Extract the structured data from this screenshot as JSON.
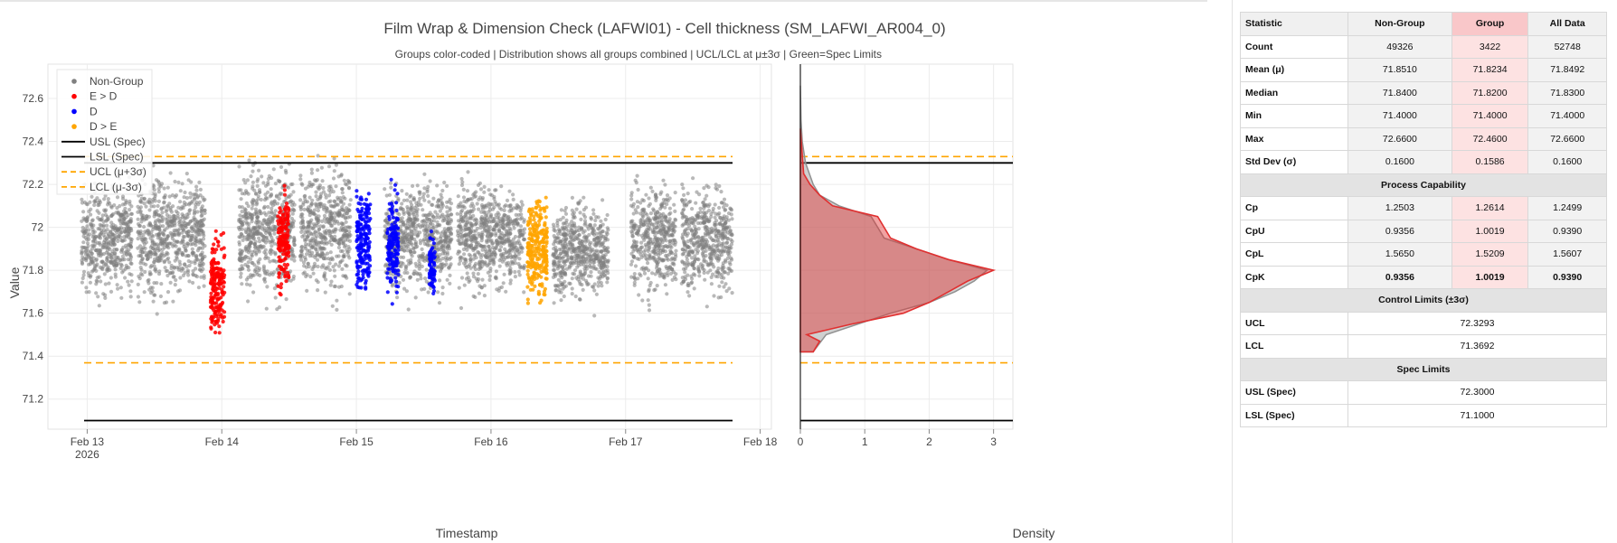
{
  "chart_data": {
    "type": "scatter",
    "title": "Film Wrap & Dimension Check (LAFWI01) - Cell thickness (SM_LAFWI_AR004_0)",
    "subtitle": "Groups color-coded | Distribution shows all groups combined | UCL/LCL at μ±3σ | Green=Spec Limits",
    "xlabel": "Timestamp",
    "ylabel": "Value",
    "x_ticks": [
      "Feb 13",
      "Feb 14",
      "Feb 15",
      "Feb 16",
      "Feb 17",
      "Feb 18"
    ],
    "x_tick_year": "2026",
    "x_range": [
      "2026-02-12 17:00",
      "2026-02-18 02:00"
    ],
    "y_ticks": [
      "71.2",
      "71.4",
      "71.6",
      "71.8",
      "72",
      "72.2",
      "72.4",
      "72.6"
    ],
    "y_range": [
      71.06,
      72.76
    ],
    "grid": true,
    "legend_position": "top-left",
    "series": [
      {
        "name": "Non-Group",
        "color": "#808080",
        "mode": "markers",
        "clusters": [
          {
            "x_start": "2026-02-12 23:00",
            "x_end": "2026-02-13 08:00",
            "y_min": 71.58,
            "y_max": 72.3
          },
          {
            "x_start": "2026-02-13 09:00",
            "x_end": "2026-02-13 21:00",
            "y_min": 71.57,
            "y_max": 72.35
          },
          {
            "x_start": "2026-02-14 03:00",
            "x_end": "2026-02-14 13:00",
            "y_min": 71.58,
            "y_max": 72.38
          },
          {
            "x_start": "2026-02-14 14:00",
            "x_end": "2026-02-14 23:00",
            "y_min": 71.58,
            "y_max": 72.4
          },
          {
            "x_start": "2026-02-15 05:00",
            "x_end": "2026-02-15 17:00",
            "y_min": 71.6,
            "y_max": 72.3
          },
          {
            "x_start": "2026-02-15 18:00",
            "x_end": "2026-02-16 06:00",
            "y_min": 71.6,
            "y_max": 72.3
          },
          {
            "x_start": "2026-02-16 11:00",
            "x_end": "2026-02-16 21:00",
            "y_min": 71.58,
            "y_max": 72.2
          },
          {
            "x_start": "2026-02-17 01:00",
            "x_end": "2026-02-17 09:00",
            "y_min": 71.58,
            "y_max": 72.3
          },
          {
            "x_start": "2026-02-17 10:00",
            "x_end": "2026-02-17 19:00",
            "y_min": 71.58,
            "y_max": 72.3
          }
        ]
      },
      {
        "name": "E > D",
        "color": "#ff0000",
        "mode": "markers",
        "clusters": [
          {
            "x_start": "2026-02-13 22:00",
            "x_end": "2026-02-14 00:30",
            "y_min": 71.4,
            "y_max": 72.05
          },
          {
            "x_start": "2026-02-14 10:00",
            "x_end": "2026-02-14 12:00",
            "y_min": 71.6,
            "y_max": 72.25
          }
        ]
      },
      {
        "name": "D",
        "color": "#0000ff",
        "mode": "markers",
        "clusters": [
          {
            "x_start": "2026-02-15 00:00",
            "x_end": "2026-02-15 02:30",
            "y_min": 71.6,
            "y_max": 72.25
          },
          {
            "x_start": "2026-02-15 05:30",
            "x_end": "2026-02-15 07:30",
            "y_min": 71.6,
            "y_max": 72.25
          },
          {
            "x_start": "2026-02-15 13:00",
            "x_end": "2026-02-15 14:00",
            "y_min": 71.6,
            "y_max": 72.05
          }
        ]
      },
      {
        "name": "D > E",
        "color": "#ffa500",
        "mode": "markers",
        "clusters": [
          {
            "x_start": "2026-02-16 06:30",
            "x_end": "2026-02-16 10:00",
            "y_min": 71.53,
            "y_max": 72.25
          }
        ]
      }
    ],
    "lines": [
      {
        "name": "USL (Spec)",
        "value": 72.3,
        "color": "#000000",
        "dash": "solid"
      },
      {
        "name": "LSL (Spec)",
        "value": 71.1,
        "color": "#000000",
        "dash": "solid"
      },
      {
        "name": "UCL (μ+3σ)",
        "value": 72.3293,
        "color": "#ffa500",
        "dash": "dash"
      },
      {
        "name": "LCL (μ-3σ)",
        "value": 71.3692,
        "color": "#ffa500",
        "dash": "dash"
      }
    ],
    "density": {
      "xlabel": "Density",
      "x_ticks": [
        "0",
        "1",
        "2",
        "3"
      ],
      "x_range": [
        0,
        3.3
      ],
      "all_color": "#a0a0a0",
      "group_color": "#e03030",
      "all_curve": [
        [
          71.42,
          0.2
        ],
        [
          71.5,
          0.4
        ],
        [
          71.6,
          1.4
        ],
        [
          71.65,
          2.0
        ],
        [
          71.7,
          2.4
        ],
        [
          71.75,
          2.7
        ],
        [
          71.8,
          2.9
        ],
        [
          71.85,
          2.3
        ],
        [
          71.9,
          1.8
        ],
        [
          71.95,
          1.3
        ],
        [
          72.0,
          1.2
        ],
        [
          72.05,
          1.1
        ],
        [
          72.1,
          0.6
        ],
        [
          72.15,
          0.3
        ],
        [
          72.2,
          0.2
        ],
        [
          72.3,
          0.08
        ],
        [
          72.4,
          0.03
        ],
        [
          72.5,
          0.01
        ],
        [
          72.66,
          0.0
        ]
      ],
      "group_curve": [
        [
          71.42,
          0.2
        ],
        [
          71.47,
          0.3
        ],
        [
          71.5,
          0.1
        ],
        [
          71.55,
          0.8
        ],
        [
          71.6,
          1.6
        ],
        [
          71.65,
          2.0
        ],
        [
          71.7,
          2.3
        ],
        [
          71.75,
          2.6
        ],
        [
          71.8,
          3.0
        ],
        [
          71.85,
          2.3
        ],
        [
          71.9,
          1.8
        ],
        [
          71.95,
          1.4
        ],
        [
          72.0,
          1.3
        ],
        [
          72.05,
          1.2
        ],
        [
          72.1,
          0.5
        ],
        [
          72.15,
          0.3
        ],
        [
          72.2,
          0.15
        ],
        [
          72.25,
          0.05
        ],
        [
          72.46,
          0.0
        ]
      ]
    }
  },
  "stats_table": {
    "headers": [
      "Statistic",
      "Non-Group",
      "Group",
      "All Data"
    ],
    "rows": [
      {
        "label": "Count",
        "values": [
          "49326",
          "3422",
          "52748"
        ]
      },
      {
        "label": "Mean (μ)",
        "values": [
          "71.8510",
          "71.8234",
          "71.8492"
        ]
      },
      {
        "label": "Median",
        "values": [
          "71.8400",
          "71.8200",
          "71.8300"
        ]
      },
      {
        "label": "Min",
        "values": [
          "71.4000",
          "71.4000",
          "71.4000"
        ]
      },
      {
        "label": "Max",
        "values": [
          "72.6600",
          "72.4600",
          "72.6600"
        ]
      },
      {
        "label": "Std Dev (σ)",
        "values": [
          "0.1600",
          "0.1586",
          "0.1600"
        ]
      }
    ],
    "capability_header": "Process Capability",
    "capability_rows": [
      {
        "label": "Cp",
        "values": [
          "1.2503",
          "1.2614",
          "1.2499"
        ],
        "bold": false
      },
      {
        "label": "CpU",
        "values": [
          "0.9356",
          "1.0019",
          "0.9390"
        ],
        "bold": false
      },
      {
        "label": "CpL",
        "values": [
          "1.5650",
          "1.5209",
          "1.5607"
        ],
        "bold": false
      },
      {
        "label": "CpK",
        "values": [
          "0.9356",
          "1.0019",
          "0.9390"
        ],
        "bold": true
      }
    ],
    "control_header": "Control Limits (±3σ)",
    "control_rows": [
      {
        "label": "UCL",
        "value": "72.3293"
      },
      {
        "label": "LCL",
        "value": "71.3692"
      }
    ],
    "spec_header": "Spec Limits",
    "spec_rows": [
      {
        "label": "USL (Spec)",
        "value": "72.3000"
      },
      {
        "label": "LSL (Spec)",
        "value": "71.1000"
      }
    ]
  }
}
